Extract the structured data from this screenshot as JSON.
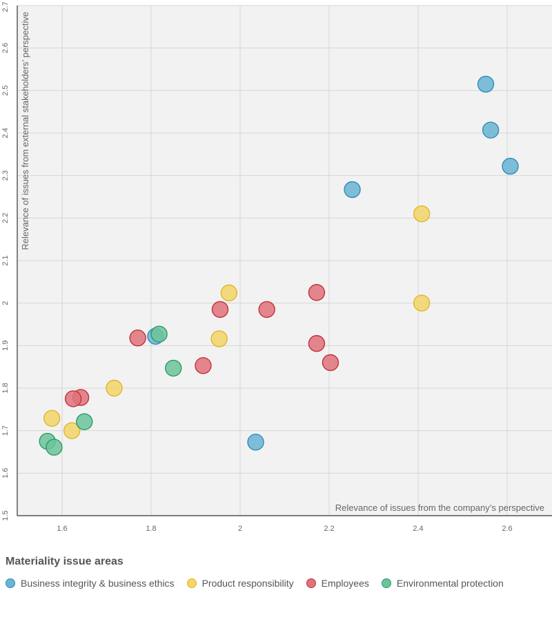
{
  "chart_data": {
    "type": "scatter",
    "xlabel": "Relevance of issues from the company’s perspective",
    "ylabel": "Relevance of issues from external stakeholders’ perspective",
    "xlim": [
      1.5,
      2.7
    ],
    "ylim": [
      1.5,
      2.7
    ],
    "x_ticks": [
      "1.6",
      "1.8",
      "2",
      "2.2",
      "2.4",
      "2.6"
    ],
    "y_ticks": [
      "1.5",
      "1.6",
      "1.7",
      "1.8",
      "1.9",
      "2",
      "2.1",
      "2.2",
      "2.3",
      "2.4",
      "2.5",
      "2.6",
      "2.7"
    ],
    "grid": true,
    "legend_position": "bottom",
    "series": [
      {
        "name": "Business integrity & business ethics",
        "color": "#6ab4d4",
        "stroke": "#2f8bb5",
        "points": [
          [
            2.552,
            2.515
          ],
          [
            2.563,
            2.407
          ],
          [
            2.607,
            2.322
          ],
          [
            2.252,
            2.267
          ],
          [
            2.035,
            1.673
          ],
          [
            1.81,
            1.922
          ]
        ]
      },
      {
        "name": "Product responsibility",
        "color": "#f3d568",
        "stroke": "#e0b52a",
        "points": [
          [
            2.408,
            2.21
          ],
          [
            2.408,
            2.0
          ],
          [
            1.975,
            2.024
          ],
          [
            1.953,
            1.916
          ],
          [
            1.717,
            1.8
          ],
          [
            1.577,
            1.729
          ],
          [
            1.622,
            1.7
          ]
        ]
      },
      {
        "name": "Employees",
        "color": "#e0727b",
        "stroke": "#c2303b",
        "points": [
          [
            2.172,
            2.025
          ],
          [
            2.172,
            1.905
          ],
          [
            2.203,
            1.86
          ],
          [
            2.06,
            1.985
          ],
          [
            1.955,
            1.985
          ],
          [
            1.917,
            1.853
          ],
          [
            1.77,
            1.918
          ],
          [
            1.642,
            1.778
          ],
          [
            1.625,
            1.775
          ]
        ]
      },
      {
        "name": "Environmental protection",
        "color": "#6cc49a",
        "stroke": "#2a9a66",
        "points": [
          [
            1.818,
            1.927
          ],
          [
            1.85,
            1.847
          ],
          [
            1.65,
            1.721
          ],
          [
            1.567,
            1.675
          ],
          [
            1.582,
            1.661
          ]
        ]
      }
    ]
  },
  "legend": {
    "title": "Materiality issue areas",
    "items": [
      {
        "label": "Business integrity & business ethics",
        "color": "#6ab4d4",
        "stroke": "#2f8bb5"
      },
      {
        "label": "Product responsibility",
        "color": "#f3d568",
        "stroke": "#e0b52a"
      },
      {
        "label": "Employees",
        "color": "#e0727b",
        "stroke": "#c2303b"
      },
      {
        "label": "Environmental protection",
        "color": "#6cc49a",
        "stroke": "#2a9a66"
      }
    ]
  }
}
